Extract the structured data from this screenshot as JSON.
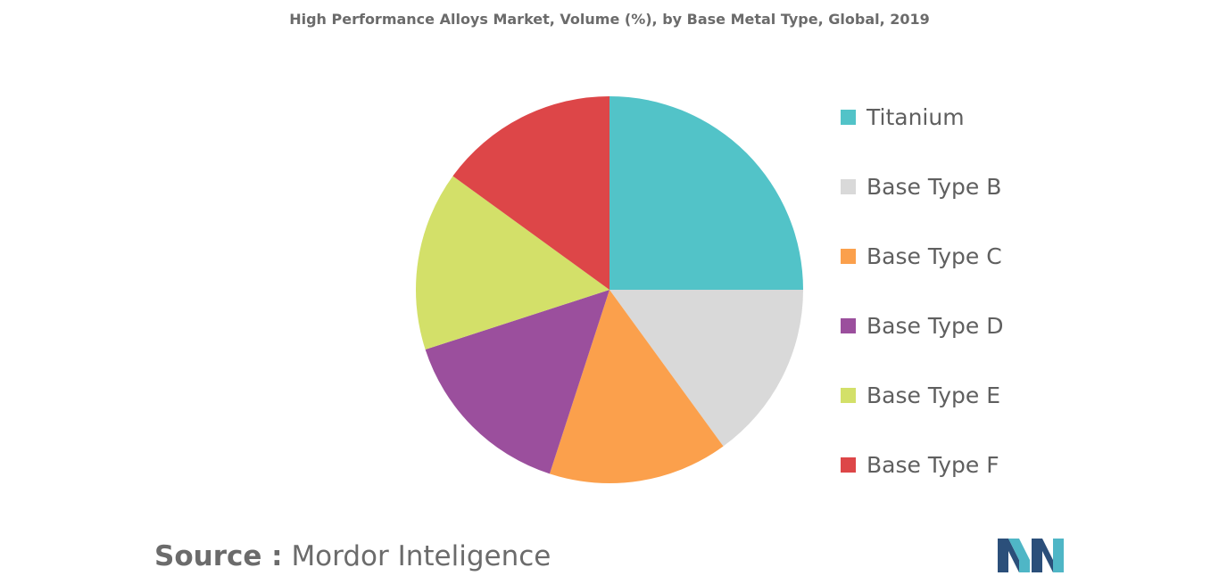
{
  "chart_data": {
    "type": "pie",
    "title": "High Performance Alloys Market, Volume (%), by Base Metal Type, Global, 2019",
    "categories": [
      "Titanium",
      "Base Type B",
      "Base Type C",
      "Base Type D",
      "Base Type E",
      "Base Type F"
    ],
    "values": [
      25,
      15,
      15,
      15,
      15,
      15
    ],
    "colors": [
      "#52c3c8",
      "#d9d9d9",
      "#fba04c",
      "#9b4f9d",
      "#d3e069",
      "#dd4648"
    ],
    "start_angle_deg": 0,
    "direction": "clockwise",
    "legend_position": "right",
    "slice_labels_shown": false
  },
  "source": {
    "label": "Source :",
    "text": "Mordor Inteligence"
  },
  "logo": {
    "icon": "mordor-intelligence-logo-icon",
    "colors": [
      "#2b4f7a",
      "#4fb6c6"
    ]
  }
}
